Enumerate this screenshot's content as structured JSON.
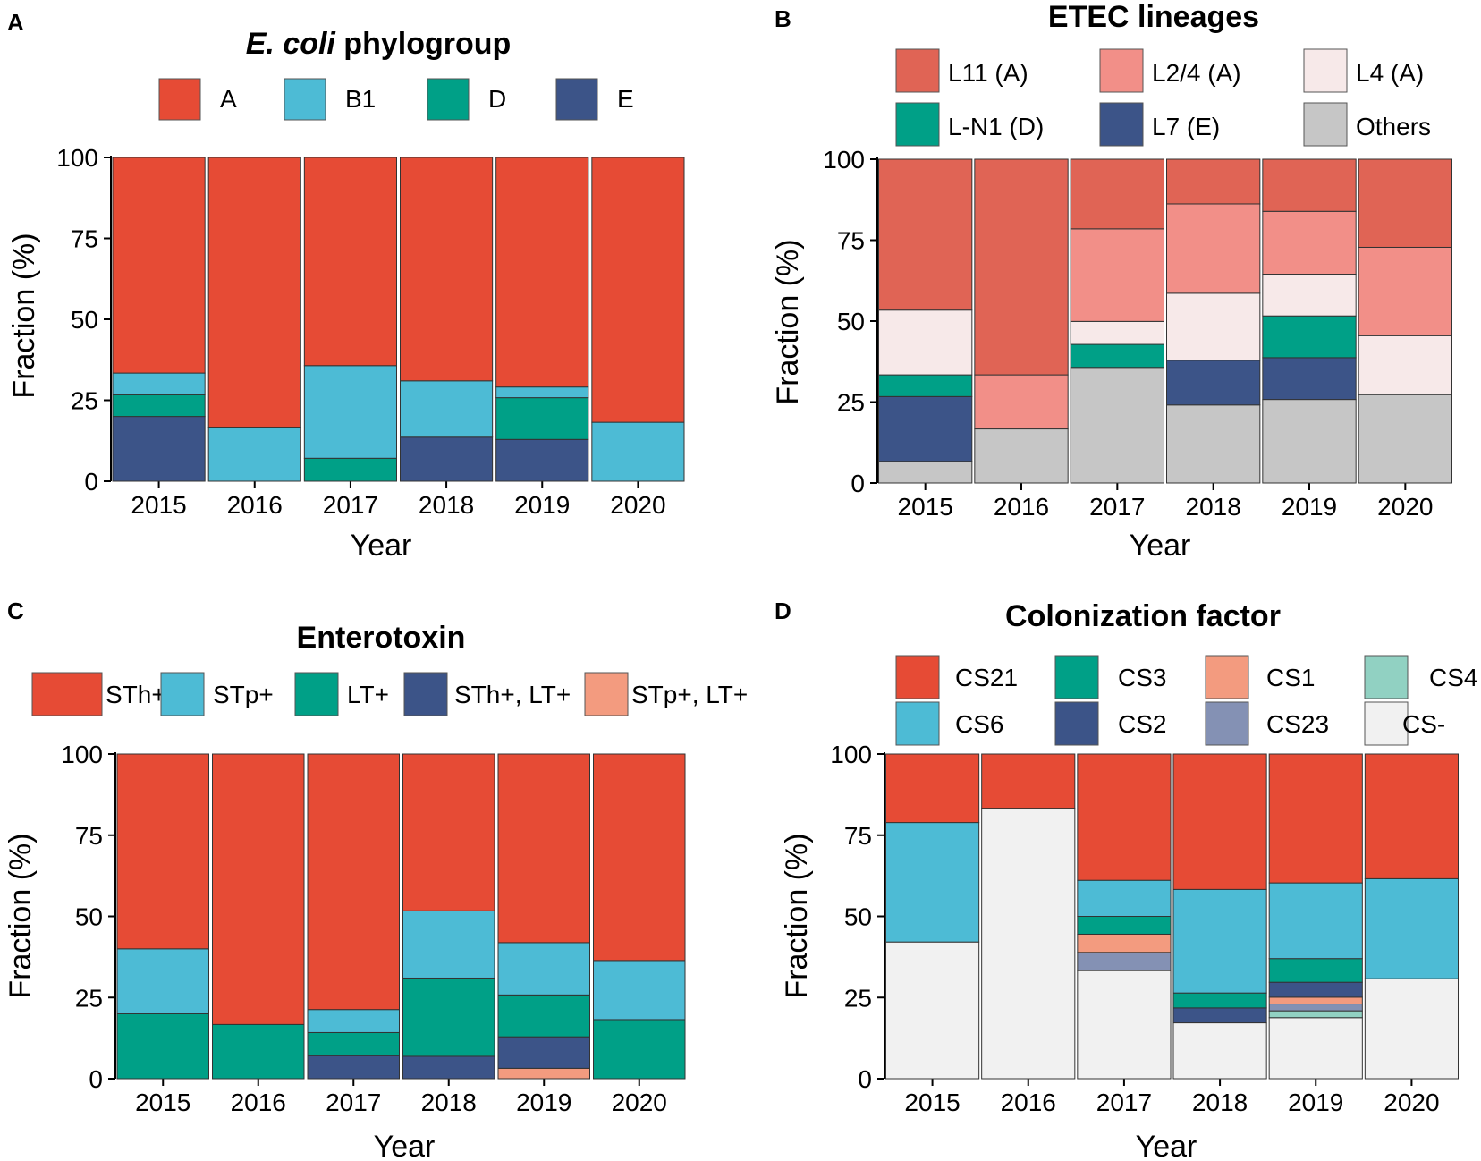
{
  "colors": {
    "A": "#e64b35",
    "B1": "#4dbbd5",
    "D": "#00a087",
    "E": "#3c5488",
    "L11": "#e06455",
    "L24": "#f28f88",
    "L4": "#f7e9e9",
    "LN1": "#00a087",
    "L7": "#3c5488",
    "Others": "#c6c6c6",
    "STh": "#e64b35",
    "STp": "#4dbbd5",
    "LT": "#00a087",
    "SThLT": "#3c5488",
    "STpLT": "#f39b7f",
    "CS21": "#e64b35",
    "CS6": "#4dbbd5",
    "CS3": "#00a087",
    "CS2": "#3c5488",
    "CS1": "#f39b7f",
    "CS23": "#8491b4",
    "CS4": "#91d1c2",
    "CSneg": "#f1f1f1"
  },
  "chart_data": [
    {
      "panel": "A",
      "type": "bar",
      "stacked": true,
      "title_italic": "E. coli",
      "title_rest": " phylogroup",
      "xlabel": "Year",
      "ylabel": "Fraction (%)",
      "ylim": [
        0,
        100
      ],
      "yticks": [
        0,
        25,
        50,
        75,
        100
      ],
      "categories": [
        "2015",
        "2016",
        "2017",
        "2018",
        "2019",
        "2020"
      ],
      "legend": [
        "A",
        "B1",
        "D",
        "E"
      ],
      "series": [
        {
          "name": "E",
          "color_key": "E",
          "values": [
            20,
            0,
            0,
            13.6,
            12.9,
            0
          ]
        },
        {
          "name": "D",
          "color_key": "D",
          "values": [
            6.7,
            0,
            7.1,
            0,
            12.9,
            0
          ]
        },
        {
          "name": "B1",
          "color_key": "B1",
          "values": [
            6.7,
            16.7,
            28.6,
            17.4,
            3.3,
            18.2
          ]
        },
        {
          "name": "A",
          "color_key": "A",
          "values": [
            66.6,
            83.3,
            64.3,
            69,
            70.9,
            81.8
          ]
        }
      ]
    },
    {
      "panel": "B",
      "type": "bar",
      "stacked": true,
      "title": "ETEC lineages",
      "xlabel": "Year",
      "ylabel": "Fraction (%)",
      "ylim": [
        0,
        100
      ],
      "yticks": [
        0,
        25,
        50,
        75,
        100
      ],
      "categories": [
        "2015",
        "2016",
        "2017",
        "2018",
        "2019",
        "2020"
      ],
      "legend": [
        "L11 (A)",
        "L2/4 (A)",
        "L4 (A)",
        "L-N1 (D)",
        "L7 (E)",
        "Others"
      ],
      "series": [
        {
          "name": "Others",
          "color_key": "Others",
          "values": [
            6.7,
            16.7,
            35.7,
            24.1,
            25.8,
            27.3
          ]
        },
        {
          "name": "L7 (E)",
          "color_key": "L7",
          "values": [
            20,
            0,
            0,
            13.8,
            12.9,
            0
          ]
        },
        {
          "name": "L-N1 (D)",
          "color_key": "LN1",
          "values": [
            6.7,
            0,
            7.1,
            0,
            12.9,
            0
          ]
        },
        {
          "name": "L4 (A)",
          "color_key": "L4",
          "values": [
            20,
            0,
            7.1,
            20.7,
            12.9,
            18.2
          ]
        },
        {
          "name": "L2/4 (A)",
          "color_key": "L24",
          "values": [
            0,
            16.7,
            28.6,
            27.6,
            19.4,
            27.3
          ]
        },
        {
          "name": "L11 (A)",
          "color_key": "L11",
          "values": [
            46.6,
            66.6,
            21.5,
            13.8,
            16.1,
            27.2
          ]
        }
      ]
    },
    {
      "panel": "C",
      "type": "bar",
      "stacked": true,
      "title": "Enterotoxin",
      "xlabel": "Year",
      "ylabel": "Fraction (%)",
      "ylim": [
        0,
        100
      ],
      "yticks": [
        0,
        25,
        50,
        75,
        100
      ],
      "categories": [
        "2015",
        "2016",
        "2017",
        "2018",
        "2019",
        "2020"
      ],
      "legend": [
        "STh+",
        "STp+",
        "LT+",
        "STh+, LT+",
        "STp+, LT+"
      ],
      "series": [
        {
          "name": "STp+, LT+",
          "color_key": "STpLT",
          "values": [
            0,
            0,
            0,
            0,
            3.2,
            0
          ]
        },
        {
          "name": "STh+, LT+",
          "color_key": "SThLT",
          "values": [
            0,
            0,
            7.1,
            6.9,
            9.7,
            0
          ]
        },
        {
          "name": "LT+",
          "color_key": "LT",
          "values": [
            20,
            16.7,
            7.1,
            24.1,
            12.9,
            18.2
          ]
        },
        {
          "name": "STp+",
          "color_key": "STp",
          "values": [
            20,
            0,
            7.1,
            20.7,
            16.1,
            18.2
          ]
        },
        {
          "name": "STh+",
          "color_key": "STh",
          "values": [
            60,
            83.3,
            78.7,
            48.3,
            58.1,
            63.6
          ]
        }
      ]
    },
    {
      "panel": "D",
      "type": "bar",
      "stacked": true,
      "title": "Colonization factor",
      "xlabel": "Year",
      "ylabel": "Fraction (%)",
      "ylim": [
        0,
        100
      ],
      "yticks": [
        0,
        25,
        50,
        75,
        100
      ],
      "categories": [
        "2015",
        "2016",
        "2017",
        "2018",
        "2019",
        "2020"
      ],
      "legend": [
        "CS21",
        "CS3",
        "CS1",
        "CS4",
        "CS6",
        "CS2",
        "CS23",
        "CS-"
      ],
      "series": [
        {
          "name": "CS-",
          "color_key": "CSneg",
          "values": [
            42.1,
            83.3,
            33.3,
            17.2,
            18.8,
            30.8
          ]
        },
        {
          "name": "CS4",
          "color_key": "CS4",
          "values": [
            0,
            0,
            0,
            0,
            2.1,
            0
          ]
        },
        {
          "name": "CS23",
          "color_key": "CS23",
          "values": [
            0,
            0,
            5.6,
            0,
            2.1,
            0
          ]
        },
        {
          "name": "CS1",
          "color_key": "CS1",
          "values": [
            0,
            0,
            5.6,
            0,
            2.1,
            0
          ]
        },
        {
          "name": "CS2",
          "color_key": "CS2",
          "values": [
            0,
            0,
            0,
            4.6,
            4.6,
            0
          ]
        },
        {
          "name": "CS3",
          "color_key": "CS3",
          "values": [
            0,
            0,
            5.5,
            4.6,
            7.3,
            0
          ]
        },
        {
          "name": "CS6",
          "color_key": "CS6",
          "values": [
            36.8,
            0,
            11.1,
            31.9,
            23.3,
            30.8
          ]
        },
        {
          "name": "CS21",
          "color_key": "CS21",
          "values": [
            21.1,
            16.7,
            38.9,
            41.7,
            39.7,
            38.4
          ]
        }
      ]
    }
  ]
}
